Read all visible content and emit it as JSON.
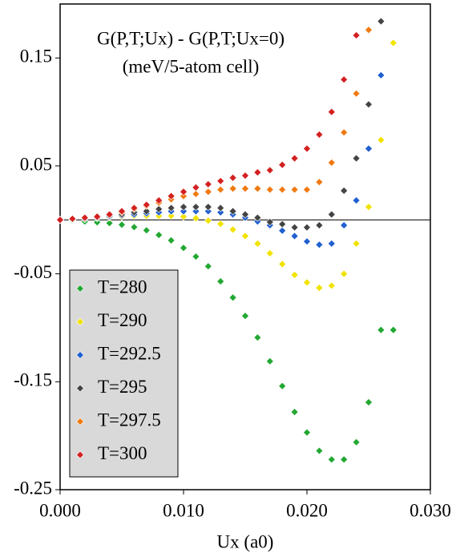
{
  "chart_data": {
    "type": "scatter",
    "title": [
      "G(P,T;Ux) - G(P,T;Ux=0)",
      "(meV/5-atom cell)"
    ],
    "x_label": "Ux (a0)",
    "xlim": [
      0,
      0.03
    ],
    "xticks": [
      {
        "value": 0,
        "label": "0.000"
      },
      {
        "value": 0.01,
        "label": "0.010"
      },
      {
        "value": 0.02,
        "label": "0.020"
      },
      {
        "value": 0.03,
        "label": "0.030"
      }
    ],
    "ylim": [
      -0.25,
      0.2
    ],
    "yticks": [
      -0.25,
      -0.15,
      -0.05,
      0.05,
      0.15
    ],
    "zero_line": true,
    "legend": "lower left",
    "series": [
      {
        "name": "T=280",
        "color": "#22a832",
        "x": [
          0,
          0.001,
          0.002,
          0.003,
          0.004,
          0.005,
          0.006,
          0.007,
          0.008,
          0.009,
          0.01,
          0.011,
          0.012,
          0.013,
          0.014,
          0.015,
          0.016,
          0.017,
          0.018,
          0.019,
          0.02,
          0.021,
          0.022,
          0.023,
          0.024,
          0.025,
          0.026,
          0.027
        ],
        "values": [
          0,
          -0.0007,
          -0.0015,
          -0.0022,
          -0.003,
          -0.0045,
          -0.0067,
          -0.0097,
          -0.014,
          -0.019,
          -0.026,
          -0.034,
          -0.043,
          -0.057,
          -0.072,
          -0.089,
          -0.109,
          -0.131,
          -0.154,
          -0.178,
          -0.197,
          -0.214,
          -0.222,
          -0.222,
          -0.206,
          -0.169,
          -0.102,
          -0.102
        ]
      },
      {
        "name": "T=290",
        "color": "#f2e200",
        "x": [
          0,
          0.001,
          0.002,
          0.003,
          0.004,
          0.005,
          0.006,
          0.007,
          0.008,
          0.009,
          0.01,
          0.011,
          0.012,
          0.013,
          0.014,
          0.015,
          0.016,
          0.017,
          0.018,
          0.019,
          0.02,
          0.021,
          0.022,
          0.023,
          0.024,
          0.025,
          0.026,
          0.027
        ],
        "values": [
          0,
          0,
          0.0007,
          0.0015,
          0.0022,
          0.003,
          0.0037,
          0.0037,
          0.0037,
          0.0037,
          0.003,
          0.0015,
          -0.0007,
          -0.0037,
          -0.009,
          -0.015,
          -0.022,
          -0.031,
          -0.041,
          -0.051,
          -0.058,
          -0.063,
          -0.061,
          -0.05,
          -0.022,
          0.012,
          0.074,
          0.164
        ]
      },
      {
        "name": "T=292.5",
        "color": "#2060d0",
        "x": [
          0,
          0.001,
          0.002,
          0.003,
          0.004,
          0.005,
          0.006,
          0.007,
          0.008,
          0.009,
          0.01,
          0.011,
          0.012,
          0.013,
          0.014,
          0.015,
          0.016,
          0.017,
          0.018,
          0.019,
          0.02,
          0.021,
          0.022,
          0.023,
          0.024,
          0.025,
          0.026
        ],
        "values": [
          0,
          0.0005,
          0.001,
          0.002,
          0.003,
          0.004,
          0.005,
          0.006,
          0.007,
          0.008,
          0.008,
          0.008,
          0.008,
          0.007,
          0.005,
          0.002,
          -0.0015,
          -0.005,
          -0.01,
          -0.015,
          -0.02,
          -0.023,
          -0.022,
          -0.005,
          0.018,
          0.066,
          0.134
        ]
      },
      {
        "name": "T=295",
        "color": "#444444",
        "x": [
          0,
          0.001,
          0.002,
          0.003,
          0.004,
          0.005,
          0.006,
          0.007,
          0.008,
          0.009,
          0.01,
          0.011,
          0.012,
          0.013,
          0.014,
          0.015,
          0.016,
          0.017,
          0.018,
          0.019,
          0.02,
          0.021,
          0.022,
          0.023,
          0.024,
          0.025,
          0.026
        ],
        "values": [
          0,
          0.0005,
          0.001,
          0.002,
          0.004,
          0.005,
          0.007,
          0.008,
          0.01,
          0.011,
          0.012,
          0.012,
          0.012,
          0.011,
          0.008,
          0.005,
          0.002,
          -0.002,
          -0.004,
          -0.007,
          -0.007,
          -0.005,
          0.005,
          0.027,
          0.057,
          0.107,
          0.184
        ]
      },
      {
        "name": "T=297.5",
        "color": "#f07a10",
        "x": [
          0,
          0.001,
          0.002,
          0.003,
          0.004,
          0.005,
          0.006,
          0.007,
          0.008,
          0.009,
          0.01,
          0.011,
          0.012,
          0.013,
          0.014,
          0.015,
          0.016,
          0.017,
          0.018,
          0.019,
          0.02,
          0.021,
          0.022,
          0.023,
          0.024,
          0.025
        ],
        "values": [
          0,
          0.001,
          0.002,
          0.003,
          0.005,
          0.007,
          0.01,
          0.013,
          0.016,
          0.019,
          0.022,
          0.024,
          0.026,
          0.028,
          0.029,
          0.029,
          0.029,
          0.028,
          0.028,
          0.028,
          0.028,
          0.035,
          0.053,
          0.081,
          0.117,
          0.176
        ]
      },
      {
        "name": "T=300",
        "color": "#d42020",
        "x": [
          0,
          0.001,
          0.002,
          0.003,
          0.004,
          0.005,
          0.006,
          0.007,
          0.008,
          0.009,
          0.01,
          0.011,
          0.012,
          0.013,
          0.014,
          0.015,
          0.016,
          0.017,
          0.018,
          0.019,
          0.02,
          0.021,
          0.022,
          0.023,
          0.024
        ],
        "values": [
          0,
          0.001,
          0.002,
          0.003,
          0.005,
          0.008,
          0.011,
          0.014,
          0.018,
          0.022,
          0.026,
          0.03,
          0.033,
          0.036,
          0.039,
          0.041,
          0.044,
          0.046,
          0.051,
          0.057,
          0.066,
          0.079,
          0.1,
          0.13,
          0.171
        ]
      }
    ]
  }
}
